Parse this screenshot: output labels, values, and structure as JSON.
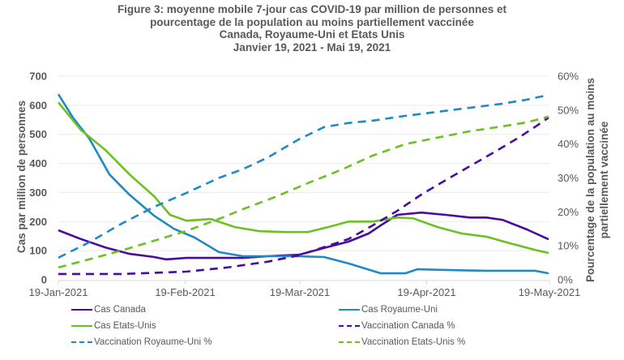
{
  "chart_data": {
    "type": "line",
    "title": [
      "Figure 3: moyenne mobile 7-jour cas COVID-19 par million de personnes et",
      "pourcentage de la population au moins partiellement vaccinée",
      "Canada, Royaume-Uni et Etats Unis",
      "Janvier 19, 2021 - Mai 19, 2021"
    ],
    "xlabel": "",
    "ylabel": "Cas par million de personnes",
    "y2label": [
      "Pourcentage de la population au moins",
      "partiellement vaccinée"
    ],
    "x_start": "2021-01-19",
    "x_days": 120,
    "x_ticks": [
      {
        "day": 0,
        "label": "19-Jan-2021"
      },
      {
        "day": 31,
        "label": "19-Feb-2021"
      },
      {
        "day": 59,
        "label": "19-Mar-2021"
      },
      {
        "day": 90,
        "label": "19-Apr-2021"
      },
      {
        "day": 120,
        "label": "19-May-2021"
      }
    ],
    "ylim": [
      0,
      700
    ],
    "y_ticks": [
      "0",
      "100",
      "200",
      "300",
      "400",
      "500",
      "600",
      "700"
    ],
    "y2lim": [
      0,
      60
    ],
    "y2_ticks": [
      "0%",
      "10%",
      "20%",
      "30%",
      "40%",
      "50%",
      "60%"
    ],
    "grid": true,
    "legend_position": "bottom",
    "series": [
      {
        "name": "Cas Canada",
        "axis": "left",
        "style": "solid",
        "color": "#4B0C9E",
        "x": [
          0,
          5.5,
          11.5,
          17.4,
          23.4,
          26.3,
          31.3,
          37.2,
          45.1,
          51.1,
          58.8,
          64.9,
          70.9,
          75.8,
          78.8,
          82.8,
          88.7,
          94.7,
          100.6,
          104.6,
          108.5,
          114.5,
          119.8
        ],
        "y": [
          170,
          140,
          111,
          89,
          78,
          70,
          75,
          75,
          75,
          81,
          86,
          109,
          131,
          159,
          187,
          223,
          231,
          223,
          214,
          214,
          206,
          173,
          139
        ]
      },
      {
        "name": "Cas Royaume-Uni",
        "axis": "left",
        "style": "solid",
        "color": "#1F8AC6",
        "x": [
          0,
          3.6,
          7.5,
          12.5,
          17.4,
          23.4,
          28.3,
          33.3,
          39.2,
          45.1,
          51.1,
          58.8,
          64.9,
          70.9,
          78.8,
          84.8,
          87.7,
          96.6,
          104.6,
          112.5,
          116.4,
          119.8
        ],
        "y": [
          638,
          557,
          487,
          362,
          292,
          220,
          175,
          145,
          95,
          81,
          81,
          81,
          78,
          56,
          22,
          22,
          36,
          33,
          31,
          31,
          31,
          22
        ]
      },
      {
        "name": "Cas Etats-Unis",
        "axis": "left",
        "style": "solid",
        "color": "#6CC024",
        "x": [
          0,
          5.5,
          11.5,
          17.4,
          23.4,
          27.3,
          31.3,
          37.2,
          43.2,
          49.1,
          55,
          61,
          65.9,
          70.9,
          76.8,
          82.8,
          86.7,
          92.7,
          98.6,
          104.6,
          110.5,
          116.4,
          119.8
        ],
        "y": [
          610,
          515,
          446,
          362,
          287,
          223,
          203,
          209,
          181,
          167,
          164,
          164,
          181,
          200,
          200,
          214,
          211,
          181,
          159,
          148,
          125,
          103,
          92
        ]
      },
      {
        "name": "Vaccination Canada %",
        "axis": "right",
        "style": "dashed",
        "color": "#4B0C9E",
        "x": [
          0,
          15.4,
          31.3,
          41.2,
          51.1,
          58.8,
          64.9,
          70.9,
          76.8,
          82.8,
          88.7,
          94.7,
          100.6,
          106.5,
          112.5,
          116.4,
          119.8
        ],
        "y": [
          1.7,
          1.7,
          2.4,
          3.6,
          5.3,
          7.2,
          9.6,
          12,
          16,
          20.3,
          25.1,
          29.4,
          33.5,
          37.6,
          41.9,
          45,
          47.8
        ]
      },
      {
        "name": "Vaccination Royaume-Uni %",
        "axis": "right",
        "style": "dashed",
        "color": "#1F8AC6",
        "x": [
          0,
          7.5,
          15.4,
          23.4,
          31.3,
          39.2,
          45.1,
          51.1,
          58.8,
          64.9,
          70.9,
          76.8,
          84.8,
          92.7,
          100.6,
          108.5,
          114.5,
          119.8
        ],
        "y": [
          6.5,
          11,
          16.5,
          21.5,
          25.6,
          30,
          32.6,
          36,
          41.4,
          45,
          46.2,
          46.9,
          48.3,
          49.5,
          50.7,
          51.9,
          53.1,
          54.5
        ]
      },
      {
        "name": "Vaccination Etats-Unis %",
        "axis": "right",
        "style": "dashed",
        "color": "#6CC024",
        "x": [
          0,
          7.5,
          15.4,
          23.4,
          31.3,
          39.2,
          45.1,
          53,
          61,
          68.9,
          76.8,
          84.8,
          92.7,
          100.6,
          108.5,
          114.5,
          119.8
        ],
        "y": [
          3.6,
          6,
          8.6,
          11.5,
          14.4,
          17.9,
          20.8,
          24.4,
          28.5,
          32.3,
          36.6,
          40,
          41.9,
          43.8,
          45.2,
          46.4,
          48.1
        ]
      }
    ]
  }
}
